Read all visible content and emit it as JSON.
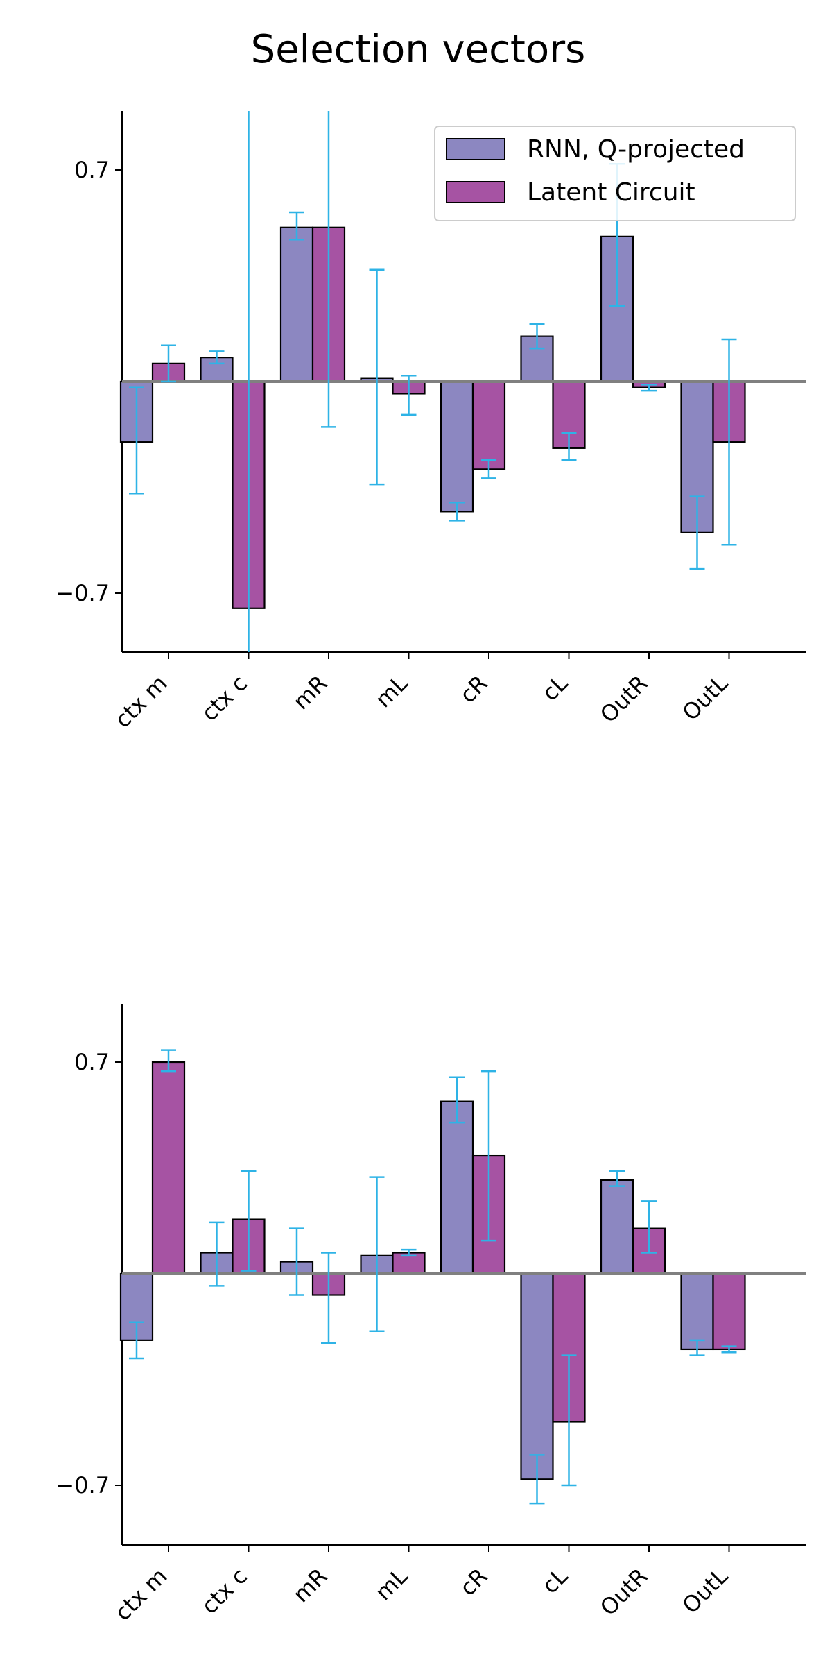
{
  "figure": {
    "title": "Selection vectors"
  },
  "colors": {
    "rnn": "#8c87c1",
    "latent": "#a653a3",
    "errorbar": "#2eb3e6",
    "zero_line": "#808080",
    "bar_edge": "#000000"
  },
  "chart_data": [
    {
      "type": "bar",
      "categories": [
        "ctx m",
        "ctx c",
        "mR",
        "mL",
        "cR",
        "cL",
        "OutR",
        "OutL"
      ],
      "ylim": [
        -0.95,
        0.95
      ],
      "yticks": [
        0.7,
        -0.7
      ],
      "ytick_labels": [
        "0.7",
        "−0.7"
      ],
      "legend": "top-right",
      "series": [
        {
          "name": "RNN, Q-projected",
          "values": [
            -0.2,
            0.08,
            0.51,
            0.01,
            -0.43,
            0.15,
            0.48,
            -0.5
          ],
          "err_low": [
            -0.37,
            0.06,
            0.47,
            -0.34,
            -0.46,
            0.11,
            0.25,
            -0.62
          ],
          "err_high": [
            -0.02,
            0.1,
            0.56,
            0.37,
            -0.4,
            0.19,
            0.72,
            -0.38
          ]
        },
        {
          "name": "Latent Circuit",
          "values": [
            0.06,
            -0.75,
            0.51,
            -0.04,
            -0.29,
            -0.22,
            -0.02,
            -0.2
          ],
          "err_low": [
            0.0,
            -1.2,
            -0.15,
            -0.11,
            -0.32,
            -0.26,
            -0.03,
            -0.54
          ],
          "err_high": [
            0.12,
            1.2,
            1.2,
            0.02,
            -0.26,
            -0.17,
            -0.01,
            0.14
          ]
        }
      ]
    },
    {
      "type": "bar",
      "categories": [
        "ctx m",
        "ctx c",
        "mR",
        "mL",
        "cR",
        "cL",
        "OutR",
        "OutL"
      ],
      "ylim": [
        -0.95,
        0.95
      ],
      "yticks": [
        0.7,
        -0.7
      ],
      "ytick_labels": [
        "0.7",
        "−0.7"
      ],
      "series": [
        {
          "name": "RNN, Q-projected",
          "values": [
            -0.22,
            0.07,
            0.04,
            0.06,
            0.57,
            -0.68,
            0.31,
            -0.25
          ],
          "err_low": [
            -0.28,
            -0.04,
            -0.07,
            -0.19,
            0.5,
            -0.76,
            0.29,
            -0.27
          ],
          "err_high": [
            -0.16,
            0.17,
            0.15,
            0.32,
            0.65,
            -0.6,
            0.34,
            -0.22
          ]
        },
        {
          "name": "Latent Circuit",
          "values": [
            0.7,
            0.18,
            -0.07,
            0.07,
            0.39,
            -0.49,
            0.15,
            -0.25
          ],
          "err_low": [
            0.67,
            0.01,
            -0.23,
            0.06,
            0.11,
            -0.7,
            0.07,
            -0.26
          ],
          "err_high": [
            0.74,
            0.34,
            0.07,
            0.08,
            0.67,
            -0.27,
            0.24,
            -0.24
          ]
        }
      ]
    }
  ]
}
